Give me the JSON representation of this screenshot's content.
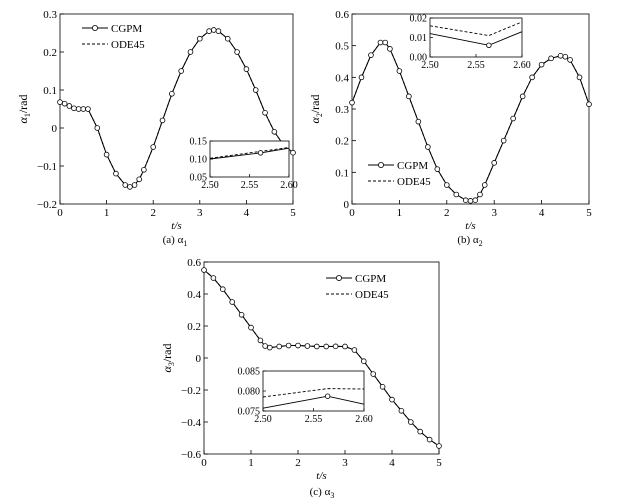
{
  "chart_data": [
    {
      "type": "line",
      "caption": "(a) α",
      "caption_sub": "1",
      "xlabel": "t/s",
      "ylabel_var": "α",
      "ylabel_sub": "1",
      "ylabel_unit": "/rad",
      "xlim": [
        0,
        5
      ],
      "ylim": [
        -0.2,
        0.3
      ],
      "xticks": [
        0,
        1,
        2,
        3,
        4,
        5
      ],
      "yticks": [
        -0.2,
        -0.1,
        0,
        0.1,
        0.2,
        0.3
      ],
      "x": [
        0,
        0.1,
        0.2,
        0.3,
        0.4,
        0.5,
        0.6,
        0.8,
        1.0,
        1.2,
        1.4,
        1.5,
        1.6,
        1.7,
        1.8,
        2.0,
        2.2,
        2.4,
        2.6,
        2.8,
        3.0,
        3.2,
        3.3,
        3.4,
        3.6,
        3.8,
        4.0,
        4.2,
        4.4,
        4.6,
        4.8,
        5.0
      ],
      "series": [
        {
          "name": "CGPM",
          "style": "solid-circle",
          "values": [
            0.068,
            0.064,
            0.058,
            0.052,
            0.05,
            0.05,
            0.05,
            0.0,
            -0.07,
            -0.12,
            -0.15,
            -0.155,
            -0.15,
            -0.135,
            -0.11,
            -0.05,
            0.02,
            0.09,
            0.15,
            0.2,
            0.235,
            0.255,
            0.258,
            0.255,
            0.235,
            0.2,
            0.155,
            0.1,
            0.04,
            -0.01,
            -0.045,
            -0.065
          ]
        },
        {
          "name": "ODE45",
          "style": "dashed",
          "values": [
            0.068,
            0.064,
            0.058,
            0.052,
            0.05,
            0.05,
            0.05,
            0.0,
            -0.07,
            -0.12,
            -0.15,
            -0.155,
            -0.15,
            -0.135,
            -0.11,
            -0.05,
            0.02,
            0.09,
            0.15,
            0.2,
            0.235,
            0.255,
            0.258,
            0.255,
            0.235,
            0.2,
            0.155,
            0.1,
            0.04,
            -0.01,
            -0.045,
            -0.065
          ]
        }
      ],
      "legend": [
        "CGPM",
        "ODE45"
      ],
      "legend_position": "top-left",
      "inset": {
        "position": "bottom-right",
        "xlim": [
          2.5,
          2.6
        ],
        "ylim": [
          0.05,
          0.15
        ],
        "xticks": [
          "2.50",
          "2.55",
          "2.60"
        ],
        "yticks": [
          "0.05",
          "0.10",
          "0.15"
        ],
        "cgpm": {
          "x": [
            2.5,
            2.564,
            2.6
          ],
          "y": [
            0.1,
            0.117,
            0.13
          ]
        },
        "ode45": {
          "x": [
            2.5,
            2.6
          ],
          "y": [
            0.102,
            0.132
          ]
        }
      }
    },
    {
      "type": "line",
      "caption": "(b) α",
      "caption_sub": "2",
      "xlabel": "t/s",
      "ylabel_var": "α",
      "ylabel_sub": "2",
      "ylabel_unit": "/rad",
      "xlim": [
        0,
        5
      ],
      "ylim": [
        0,
        0.6
      ],
      "xticks": [
        0,
        1,
        2,
        3,
        4,
        5
      ],
      "yticks": [
        0,
        0.1,
        0.2,
        0.3,
        0.4,
        0.5,
        0.6
      ],
      "x": [
        0,
        0.2,
        0.4,
        0.6,
        0.7,
        0.8,
        1.0,
        1.2,
        1.4,
        1.6,
        1.8,
        2.0,
        2.2,
        2.4,
        2.5,
        2.6,
        2.7,
        2.8,
        3.0,
        3.2,
        3.4,
        3.6,
        3.8,
        4.0,
        4.2,
        4.4,
        4.5,
        4.6,
        4.8,
        5.0
      ],
      "series": [
        {
          "name": "CGPM",
          "style": "solid-circle",
          "values": [
            0.32,
            0.4,
            0.47,
            0.51,
            0.51,
            0.49,
            0.42,
            0.34,
            0.26,
            0.18,
            0.11,
            0.06,
            0.03,
            0.012,
            0.01,
            0.012,
            0.03,
            0.06,
            0.13,
            0.2,
            0.27,
            0.34,
            0.4,
            0.44,
            0.46,
            0.468,
            0.465,
            0.455,
            0.4,
            0.315
          ]
        },
        {
          "name": "ODE45",
          "style": "dashed",
          "values": [
            0.32,
            0.4,
            0.47,
            0.51,
            0.51,
            0.49,
            0.42,
            0.34,
            0.26,
            0.18,
            0.11,
            0.06,
            0.03,
            0.012,
            0.01,
            0.012,
            0.03,
            0.06,
            0.13,
            0.2,
            0.27,
            0.34,
            0.4,
            0.44,
            0.46,
            0.468,
            0.465,
            0.455,
            0.4,
            0.315
          ]
        }
      ],
      "legend": [
        "CGPM",
        "ODE45"
      ],
      "legend_position": "bottom-left",
      "inset": {
        "position": "top-center",
        "xlim": [
          2.5,
          2.6
        ],
        "ylim": [
          0.0,
          0.02
        ],
        "xticks": [
          "2.50",
          "2.55",
          "2.60"
        ],
        "yticks": [
          "0.00",
          "0.01",
          "0.02"
        ],
        "cgpm": {
          "x": [
            2.5,
            2.564,
            2.6
          ],
          "y": [
            0.012,
            0.006,
            0.013
          ]
        },
        "ode45": {
          "x": [
            2.5,
            2.564,
            2.6
          ],
          "y": [
            0.016,
            0.011,
            0.018
          ]
        }
      }
    },
    {
      "type": "line",
      "caption": "(c) α",
      "caption_sub": "3",
      "xlabel": "t/s",
      "ylabel_var": "α",
      "ylabel_sub": "3",
      "ylabel_unit": "/rad",
      "xlim": [
        0,
        5
      ],
      "ylim": [
        -0.6,
        0.6
      ],
      "xticks": [
        0,
        1,
        2,
        3,
        4,
        5
      ],
      "yticks": [
        -0.6,
        -0.4,
        -0.2,
        0,
        0.2,
        0.4,
        0.6
      ],
      "x": [
        0,
        0.2,
        0.4,
        0.6,
        0.8,
        1.0,
        1.2,
        1.3,
        1.4,
        1.6,
        1.8,
        2.0,
        2.2,
        2.4,
        2.6,
        2.8,
        3.0,
        3.2,
        3.4,
        3.6,
        3.8,
        4.0,
        4.2,
        4.4,
        4.6,
        4.8,
        5.0
      ],
      "series": [
        {
          "name": "CGPM",
          "style": "solid-circle",
          "values": [
            0.55,
            0.5,
            0.43,
            0.35,
            0.27,
            0.19,
            0.11,
            0.075,
            0.065,
            0.072,
            0.078,
            0.078,
            0.075,
            0.072,
            0.072,
            0.073,
            0.072,
            0.05,
            -0.02,
            -0.1,
            -0.18,
            -0.26,
            -0.33,
            -0.4,
            -0.46,
            -0.51,
            -0.55
          ]
        },
        {
          "name": "ODE45",
          "style": "dashed",
          "values": [
            0.55,
            0.5,
            0.43,
            0.35,
            0.27,
            0.19,
            0.11,
            0.075,
            0.065,
            0.072,
            0.078,
            0.078,
            0.075,
            0.072,
            0.072,
            0.073,
            0.072,
            0.05,
            -0.02,
            -0.1,
            -0.18,
            -0.26,
            -0.33,
            -0.4,
            -0.46,
            -0.51,
            -0.55
          ]
        }
      ],
      "legend": [
        "CGPM",
        "ODE45"
      ],
      "legend_position": "top-right",
      "inset": {
        "position": "bottom-left",
        "xlim": [
          2.5,
          2.6
        ],
        "ylim": [
          0.075,
          0.085
        ],
        "xticks": [
          "2.50",
          "2.55",
          "2.60"
        ],
        "yticks": [
          "0.075",
          "0.080",
          "0.085"
        ],
        "cgpm": {
          "x": [
            2.5,
            2.564,
            2.6
          ],
          "y": [
            0.0757,
            0.0787,
            0.0767
          ]
        },
        "ode45": {
          "x": [
            2.5,
            2.564,
            2.6
          ],
          "y": [
            0.0785,
            0.0806,
            0.0805
          ]
        }
      }
    }
  ]
}
